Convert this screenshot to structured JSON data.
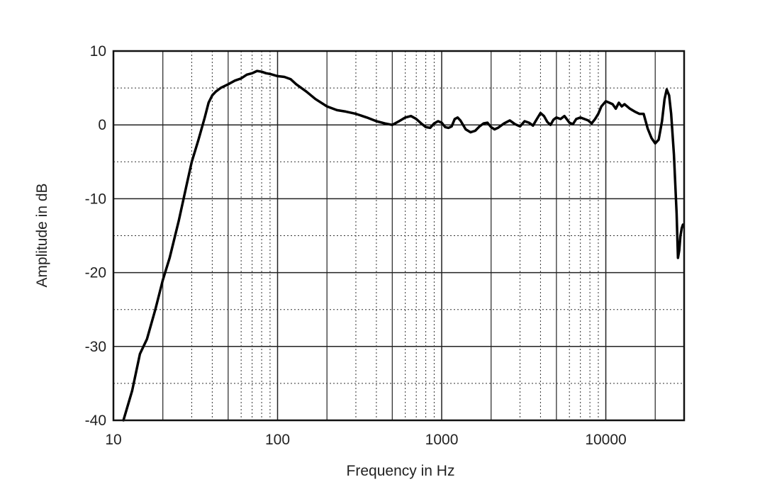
{
  "chart_data": {
    "type": "line",
    "title": "",
    "xlabel": "Frequency in Hz",
    "ylabel": "Amplitude in dB",
    "xscale": "log",
    "xlim": [
      10,
      30000
    ],
    "ylim": [
      -40,
      10
    ],
    "xticks": [
      10,
      100,
      1000,
      10000
    ],
    "xtick_labels": [
      "10",
      "100",
      "1000",
      "10000"
    ],
    "yticks": [
      10,
      0,
      -10,
      -20,
      -30,
      -40
    ],
    "ytick_labels": [
      "10",
      "0",
      "-10",
      "-20",
      "-30",
      "-40"
    ],
    "grid": true,
    "colors": {
      "line": "#000000",
      "grid": "#333333",
      "background": "#ffffff"
    },
    "series": [
      {
        "x": [
          11.5,
          13,
          14.5,
          16,
          18,
          20,
          22,
          25,
          28,
          30,
          33,
          36,
          38,
          40,
          42,
          45,
          50,
          55,
          60,
          65,
          70,
          75,
          80,
          85,
          90,
          100,
          110,
          120,
          130,
          150,
          170,
          200,
          230,
          260,
          300,
          350,
          400,
          450,
          500,
          550,
          600,
          650,
          700,
          750,
          800,
          850,
          900,
          950,
          1000,
          1050,
          1100,
          1150,
          1200,
          1250,
          1300,
          1400,
          1500,
          1600,
          1700,
          1800,
          1900,
          2000,
          2100,
          2200,
          2400,
          2600,
          2800,
          3000,
          3200,
          3400,
          3600,
          3800,
          4000,
          4200,
          4400,
          4600,
          4800,
          5000,
          5300,
          5600,
          6000,
          6300,
          6600,
          7000,
          7400,
          7800,
          8200,
          8600,
          9000,
          9400,
          10000,
          10500,
          11000,
          11500,
          12000,
          12500,
          13000,
          14000,
          15000,
          16000,
          17000,
          18000,
          19000,
          20000,
          21000,
          22000,
          22800,
          23500,
          24300,
          25000,
          26000,
          27000,
          27500,
          28000,
          28500,
          29000,
          29500
        ],
        "y": [
          -40,
          -36,
          -31,
          -29,
          -25,
          -21,
          -18,
          -13,
          -8,
          -5,
          -2,
          1,
          3,
          4,
          4.5,
          5,
          5.5,
          6,
          6.3,
          6.8,
          7,
          7.3,
          7.2,
          7,
          6.9,
          6.6,
          6.5,
          6.2,
          5.5,
          4.5,
          3.5,
          2.5,
          2,
          1.8,
          1.5,
          1,
          0.5,
          0.2,
          0,
          0.5,
          1,
          1.2,
          0.8,
          0.2,
          -0.3,
          -0.4,
          0.2,
          0.5,
          0.3,
          -0.3,
          -0.4,
          -0.2,
          0.8,
          1,
          0.6,
          -0.6,
          -1,
          -0.8,
          -0.2,
          0.2,
          0.3,
          -0.3,
          -0.6,
          -0.4,
          0.2,
          0.6,
          0.1,
          -0.2,
          0.5,
          0.3,
          -0.1,
          0.8,
          1.6,
          1.2,
          0.4,
          0,
          0.7,
          1,
          0.8,
          1.2,
          0.3,
          0.1,
          0.8,
          1,
          0.8,
          0.6,
          0.2,
          0.8,
          1.5,
          2.5,
          3.2,
          3,
          2.8,
          2.2,
          3,
          2.5,
          2.8,
          2.2,
          1.8,
          1.5,
          1.5,
          -0.5,
          -1.8,
          -2.5,
          -2,
          0.5,
          3.5,
          4.8,
          4,
          1.5,
          -4,
          -12,
          -18,
          -17,
          -15,
          -14,
          -13.5
        ]
      }
    ]
  }
}
